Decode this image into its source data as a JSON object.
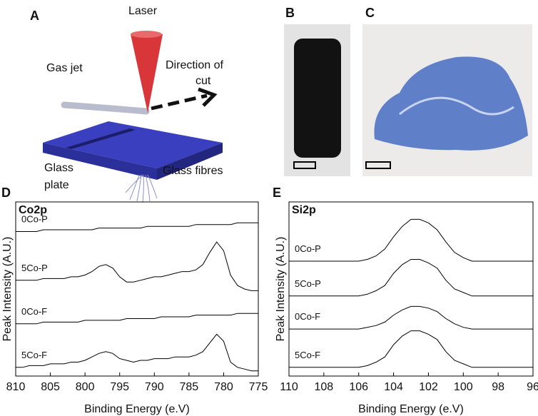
{
  "figure": {
    "panel_labels": [
      "A",
      "B",
      "C",
      "D",
      "E"
    ],
    "diagram": {
      "laser": "Laser",
      "gas_jet": "Gas jet",
      "direction": [
        "Direction of",
        "cut"
      ],
      "plate": [
        "Glass",
        "plate"
      ],
      "fibres": "Glass fibres"
    }
  },
  "chart_data": [
    {
      "type": "line",
      "title": "Co2p",
      "xlabel": "Binding Energy (e.V)",
      "ylabel": "Peak Intensity (A.U.)",
      "x": [
        810,
        809,
        808,
        807,
        806,
        805,
        804,
        803,
        802,
        801,
        800,
        799,
        798,
        797,
        796,
        795,
        794,
        793,
        792,
        791,
        790,
        789,
        788,
        787,
        786,
        785,
        784,
        783,
        782,
        781,
        780,
        779,
        778,
        777,
        776,
        775
      ],
      "xlim": [
        810,
        775
      ],
      "xticks": [
        810,
        805,
        800,
        795,
        790,
        785,
        780,
        775
      ],
      "ylim": [
        0,
        100
      ],
      "series": [
        {
          "name": "0Co-P",
          "color": "#000000",
          "values": [
            83,
            83,
            83,
            83,
            84,
            84,
            84,
            84,
            84,
            84,
            84,
            84,
            85,
            85,
            85,
            85,
            85,
            85,
            85,
            86,
            86,
            86,
            86,
            86,
            86,
            86,
            87,
            87,
            87,
            87,
            87,
            87,
            88,
            88,
            88,
            88
          ]
        },
        {
          "name": "5Co-P",
          "color": "#000000",
          "values": [
            55,
            55,
            55,
            55,
            56,
            56,
            56,
            56,
            57,
            57,
            58,
            60,
            63,
            64,
            62,
            57,
            54,
            54,
            55,
            56,
            57,
            57,
            58,
            59,
            60,
            60,
            61,
            64,
            71,
            77,
            72,
            58,
            52,
            50,
            49,
            49
          ]
        },
        {
          "name": "0Co-F",
          "color": "#000000",
          "values": [
            30,
            30,
            30,
            30,
            31,
            31,
            31,
            31,
            31,
            31,
            32,
            32,
            32,
            32,
            32,
            32,
            33,
            33,
            33,
            33,
            33,
            34,
            34,
            34,
            34,
            34,
            35,
            35,
            35,
            35,
            35,
            35,
            36,
            36,
            36,
            36
          ]
        },
        {
          "name": "5Co-F",
          "color": "#000000",
          "values": [
            5,
            5,
            6,
            6,
            6,
            7,
            7,
            7,
            8,
            8,
            9,
            11,
            13,
            14,
            13,
            10,
            9,
            8,
            9,
            9,
            10,
            10,
            10,
            11,
            11,
            11,
            12,
            14,
            19,
            24,
            20,
            8,
            5,
            4,
            3,
            3
          ]
        }
      ]
    },
    {
      "type": "line",
      "title": "Si2p",
      "xlabel": "Binding Energy (e.V)",
      "ylabel": "Peak Intensity (A.U.)",
      "x": [
        110,
        109.5,
        109,
        108.5,
        108,
        107.5,
        107,
        106.5,
        106,
        105.5,
        105,
        104.5,
        104,
        103.5,
        103,
        102.5,
        102,
        101.5,
        101,
        100.5,
        100,
        99.5,
        99,
        98.5,
        98,
        97.5,
        97,
        96.5,
        96
      ],
      "xlim": [
        110,
        96
      ],
      "xticks": [
        110,
        108,
        106,
        104,
        102,
        100,
        98,
        96
      ],
      "ylim": [
        0,
        100
      ],
      "series": [
        {
          "name": "0Co-P",
          "color": "#000000",
          "values": [
            66,
            66,
            66,
            66,
            66,
            66,
            66,
            66,
            66,
            67,
            69,
            73,
            80,
            86,
            90,
            90,
            88,
            84,
            77,
            71,
            68,
            66,
            66,
            66,
            66,
            66,
            66,
            66,
            66
          ]
        },
        {
          "name": "5Co-P",
          "color": "#000000",
          "values": [
            46,
            46,
            46,
            46,
            46,
            46,
            46,
            46,
            46,
            47,
            49,
            52,
            59,
            64,
            67,
            67,
            65,
            62,
            55,
            50,
            48,
            46,
            46,
            46,
            46,
            46,
            46,
            46,
            46
          ]
        },
        {
          "name": "0Co-F",
          "color": "#000000",
          "values": [
            27,
            27,
            27,
            27,
            27,
            27,
            27,
            27,
            27,
            28,
            29,
            31,
            35,
            38,
            40,
            40,
            39,
            37,
            33,
            30,
            28,
            27,
            27,
            27,
            27,
            27,
            27,
            27,
            27
          ]
        },
        {
          "name": "5Co-F",
          "color": "#000000",
          "values": [
            5,
            5,
            5,
            5,
            5,
            5,
            5,
            5,
            5,
            6,
            8,
            11,
            18,
            23,
            26,
            26,
            24,
            21,
            14,
            9,
            7,
            5,
            5,
            5,
            5,
            5,
            5,
            5,
            5
          ]
        }
      ]
    }
  ]
}
